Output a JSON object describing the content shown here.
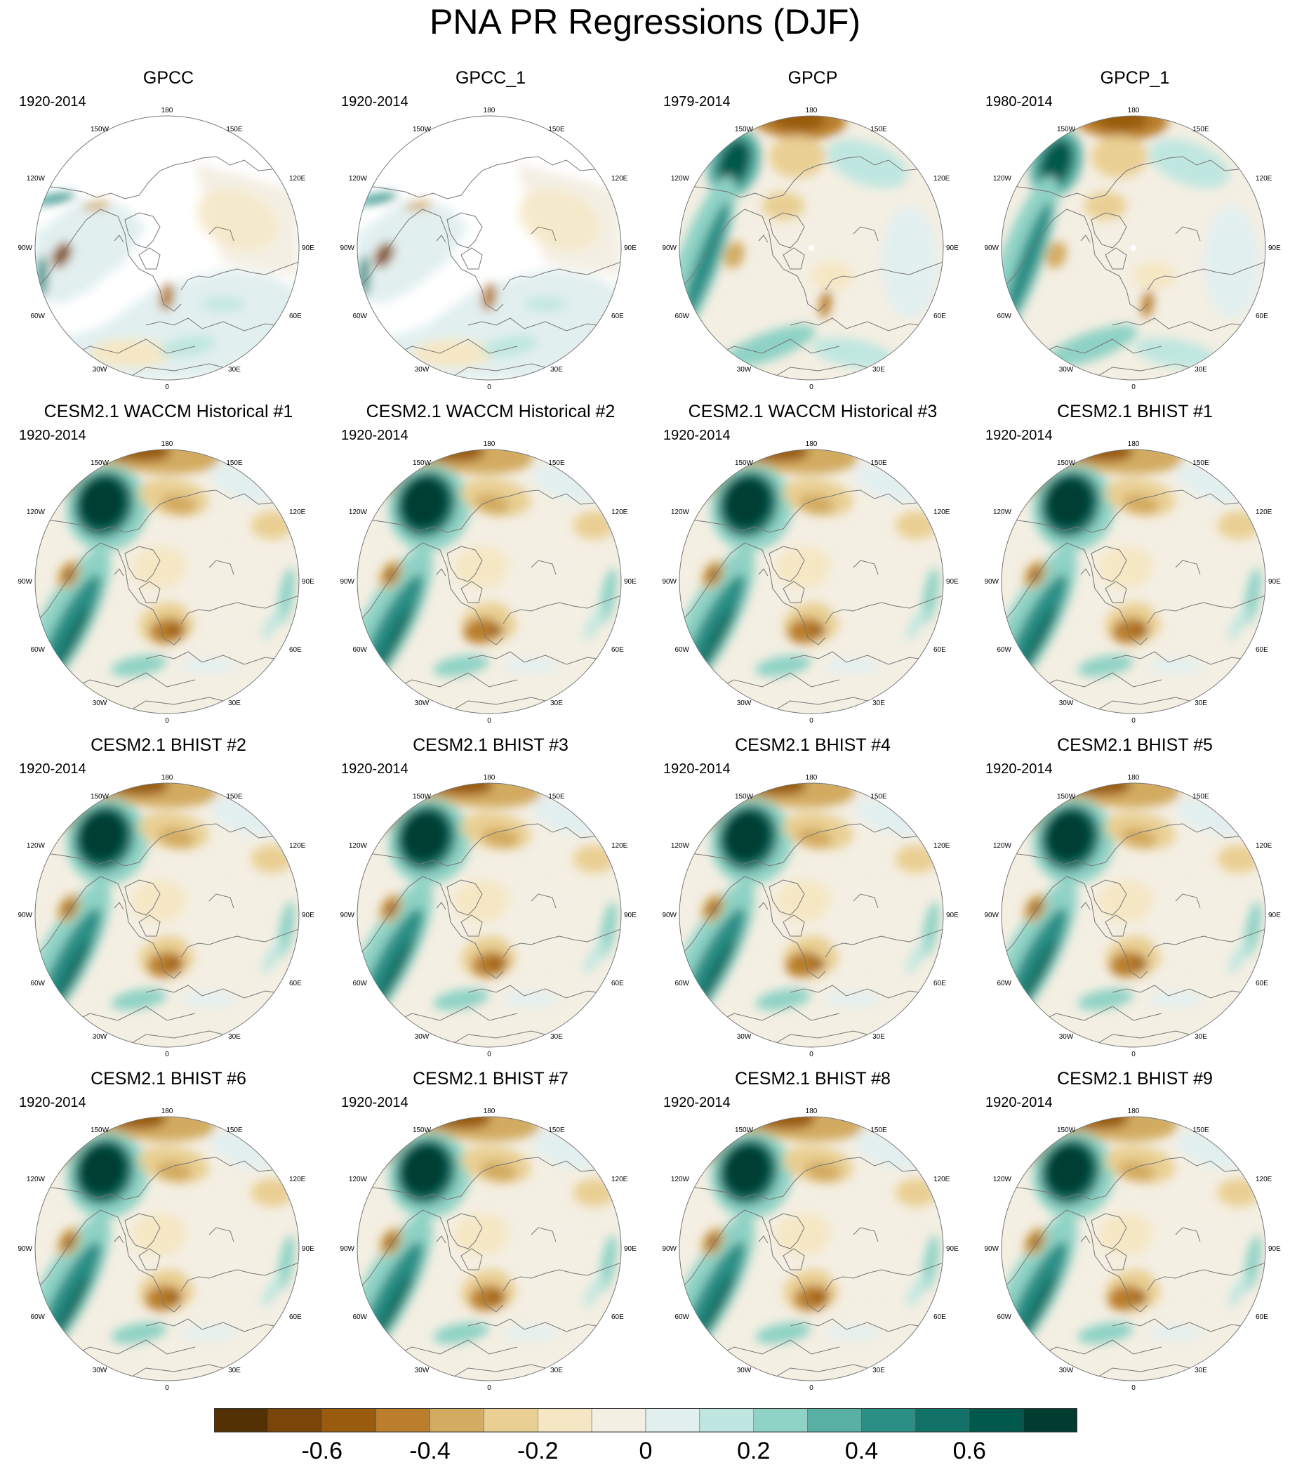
{
  "title": "PNA PR Regressions (DJF)",
  "colors": {
    "levels": [
      "#543005",
      "#7a4508",
      "#995c0f",
      "#ba7e2c",
      "#d3ab61",
      "#e9cf93",
      "#f5e7c4",
      "#f4efe3",
      "#e2efef",
      "#bfe6e0",
      "#8ed2c5",
      "#58b0a5",
      "#2b8f86",
      "#137267",
      "#01584c",
      "#003c30"
    ],
    "coast": "#777777",
    "frame": "#777777"
  },
  "map_labels": {
    "lon_top": "180",
    "lon_bottom": "0",
    "lon_left": "90W",
    "lon_right": "90E",
    "lon_150w": "150W",
    "lon_150e": "150E",
    "lon_120w": "120W",
    "lon_120e": "120E",
    "lon_60w": "60W",
    "lon_60e": "60E",
    "lon_30w": "30W",
    "lon_30e": "30E"
  },
  "panels": [
    {
      "name": "GPCC",
      "period": "1920-2014",
      "kind": "gpcc"
    },
    {
      "name": "GPCC_1",
      "period": "1920-2014",
      "kind": "gpcc"
    },
    {
      "name": "GPCP",
      "period": "1979-2014",
      "kind": "gpcp"
    },
    {
      "name": "GPCP_1",
      "period": "1980-2014",
      "kind": "gpcp"
    },
    {
      "name": "CESM2.1 WACCM Historical #1",
      "period": "1920-2014",
      "kind": "model"
    },
    {
      "name": "CESM2.1 WACCM Historical #2",
      "period": "1920-2014",
      "kind": "model"
    },
    {
      "name": "CESM2.1 WACCM Historical #3",
      "period": "1920-2014",
      "kind": "model"
    },
    {
      "name": "CESM2.1 BHIST #1",
      "period": "1920-2014",
      "kind": "model"
    },
    {
      "name": "CESM2.1 BHIST #2",
      "period": "1920-2014",
      "kind": "model"
    },
    {
      "name": "CESM2.1 BHIST #3",
      "period": "1920-2014",
      "kind": "model"
    },
    {
      "name": "CESM2.1 BHIST #4",
      "period": "1920-2014",
      "kind": "model"
    },
    {
      "name": "CESM2.1 BHIST #5",
      "period": "1920-2014",
      "kind": "model"
    },
    {
      "name": "CESM2.1 BHIST #6",
      "period": "1920-2014",
      "kind": "model"
    },
    {
      "name": "CESM2.1 BHIST #7",
      "period": "1920-2014",
      "kind": "model"
    },
    {
      "name": "CESM2.1 BHIST #8",
      "period": "1920-2014",
      "kind": "model"
    },
    {
      "name": "CESM2.1 BHIST #9",
      "period": "1920-2014",
      "kind": "model"
    }
  ],
  "colorbar": {
    "tick_labels": [
      "-0.6",
      "-0.4",
      "-0.2",
      "0",
      "0.2",
      "0.4",
      "0.6"
    ]
  }
}
